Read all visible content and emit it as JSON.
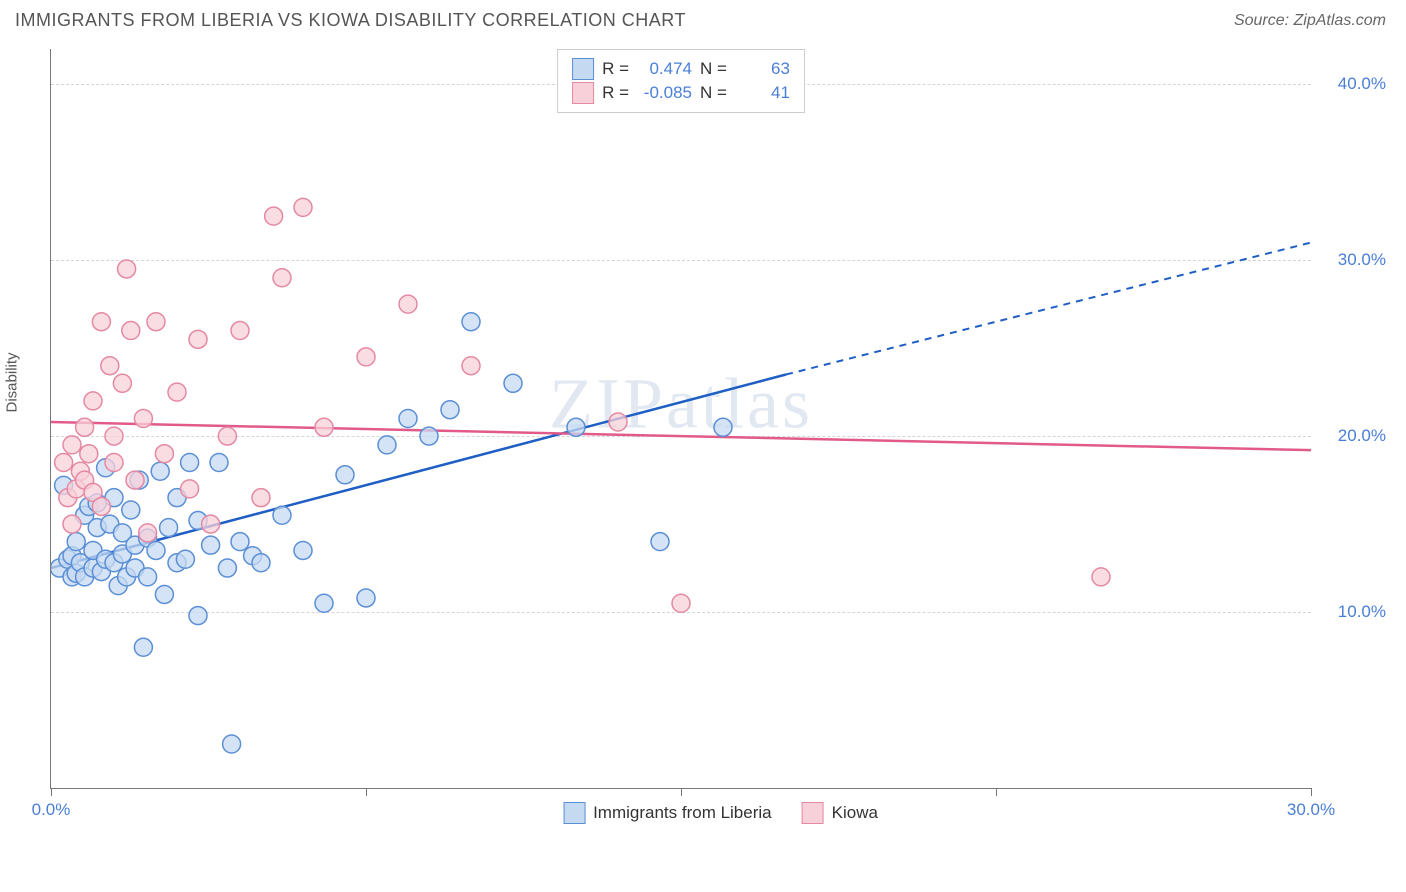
{
  "title": "IMMIGRANTS FROM LIBERIA VS KIOWA DISABILITY CORRELATION CHART",
  "source": "Source: ZipAtlas.com",
  "watermark": "ZIPatlas",
  "y_axis_label": "Disability",
  "chart": {
    "type": "scatter",
    "xlim": [
      0,
      30
    ],
    "ylim": [
      0,
      42
    ],
    "background_color": "#ffffff",
    "grid_color": "#d5d5d5",
    "axis_color": "#777777",
    "tick_label_color": "#4a7fd8",
    "y_ticks": [
      {
        "pos": 10,
        "label": "10.0%"
      },
      {
        "pos": 20,
        "label": "20.0%"
      },
      {
        "pos": 30,
        "label": "30.0%"
      },
      {
        "pos": 40,
        "label": "40.0%"
      }
    ],
    "x_ticks": [
      0,
      7.5,
      15,
      22.5,
      30
    ],
    "x_tick_labels": {
      "0": "0.0%",
      "30": "30.0%"
    },
    "marker_radius": 9,
    "marker_stroke_width": 1.5,
    "line_width": 2.5,
    "series": [
      {
        "name": "Immigrants from Liberia",
        "fill": "#c5d9f1",
        "stroke": "#5b8fd6",
        "line_color": "#1f5fc4",
        "R": "0.474",
        "N": "63",
        "trend": {
          "x1": 0,
          "y1": 12.5,
          "x2_solid": 17.5,
          "y2_solid": 23.5,
          "x2": 30,
          "y2": 31
        },
        "points": [
          [
            0.2,
            12.5
          ],
          [
            0.3,
            17.2
          ],
          [
            0.4,
            13.0
          ],
          [
            0.5,
            12.0
          ],
          [
            0.5,
            13.2
          ],
          [
            0.6,
            14.0
          ],
          [
            0.6,
            12.2
          ],
          [
            0.7,
            12.8
          ],
          [
            0.8,
            15.5
          ],
          [
            0.8,
            12.0
          ],
          [
            0.9,
            16.0
          ],
          [
            1.0,
            12.5
          ],
          [
            1.0,
            13.5
          ],
          [
            1.1,
            14.8
          ],
          [
            1.1,
            16.2
          ],
          [
            1.2,
            12.3
          ],
          [
            1.3,
            18.2
          ],
          [
            1.3,
            13.0
          ],
          [
            1.4,
            15.0
          ],
          [
            1.5,
            12.8
          ],
          [
            1.5,
            16.5
          ],
          [
            1.6,
            11.5
          ],
          [
            1.7,
            14.5
          ],
          [
            1.7,
            13.3
          ],
          [
            1.8,
            12.0
          ],
          [
            1.9,
            15.8
          ],
          [
            2.0,
            13.8
          ],
          [
            2.0,
            12.5
          ],
          [
            2.1,
            17.5
          ],
          [
            2.2,
            8.0
          ],
          [
            2.3,
            14.2
          ],
          [
            2.3,
            12.0
          ],
          [
            2.5,
            13.5
          ],
          [
            2.6,
            18.0
          ],
          [
            2.7,
            11.0
          ],
          [
            2.8,
            14.8
          ],
          [
            3.0,
            16.5
          ],
          [
            3.0,
            12.8
          ],
          [
            3.2,
            13.0
          ],
          [
            3.3,
            18.5
          ],
          [
            3.5,
            15.2
          ],
          [
            3.5,
            9.8
          ],
          [
            3.8,
            13.8
          ],
          [
            4.0,
            18.5
          ],
          [
            4.2,
            12.5
          ],
          [
            4.3,
            2.5
          ],
          [
            4.5,
            14.0
          ],
          [
            4.8,
            13.2
          ],
          [
            5.0,
            12.8
          ],
          [
            5.5,
            15.5
          ],
          [
            6.0,
            13.5
          ],
          [
            6.5,
            10.5
          ],
          [
            7.0,
            17.8
          ],
          [
            7.5,
            10.8
          ],
          [
            8.0,
            19.5
          ],
          [
            8.5,
            21.0
          ],
          [
            9.0,
            20.0
          ],
          [
            9.5,
            21.5
          ],
          [
            10.0,
            26.5
          ],
          [
            11.0,
            23.0
          ],
          [
            12.5,
            20.5
          ],
          [
            14.5,
            14.0
          ],
          [
            16.0,
            20.5
          ]
        ]
      },
      {
        "name": "Kiowa",
        "fill": "#f8d0da",
        "stroke": "#e589a3",
        "line_color": "#e15a8a",
        "R": "-0.085",
        "N": "41",
        "trend": {
          "x1": 0,
          "y1": 20.8,
          "x2_solid": 30,
          "y2_solid": 19.2,
          "x2": 30,
          "y2": 19.2
        },
        "points": [
          [
            0.3,
            18.5
          ],
          [
            0.4,
            16.5
          ],
          [
            0.5,
            19.5
          ],
          [
            0.5,
            15.0
          ],
          [
            0.6,
            17.0
          ],
          [
            0.7,
            18.0
          ],
          [
            0.8,
            17.5
          ],
          [
            0.8,
            20.5
          ],
          [
            0.9,
            19.0
          ],
          [
            1.0,
            22.0
          ],
          [
            1.0,
            16.8
          ],
          [
            1.2,
            26.5
          ],
          [
            1.2,
            16.0
          ],
          [
            1.4,
            24.0
          ],
          [
            1.5,
            18.5
          ],
          [
            1.5,
            20.0
          ],
          [
            1.7,
            23.0
          ],
          [
            1.8,
            29.5
          ],
          [
            1.9,
            26.0
          ],
          [
            2.0,
            17.5
          ],
          [
            2.2,
            21.0
          ],
          [
            2.3,
            14.5
          ],
          [
            2.5,
            26.5
          ],
          [
            2.7,
            19.0
          ],
          [
            3.0,
            22.5
          ],
          [
            3.3,
            17.0
          ],
          [
            3.5,
            25.5
          ],
          [
            3.8,
            15.0
          ],
          [
            4.2,
            20.0
          ],
          [
            4.5,
            26.0
          ],
          [
            5.0,
            16.5
          ],
          [
            5.3,
            32.5
          ],
          [
            5.5,
            29.0
          ],
          [
            6.0,
            33.0
          ],
          [
            6.5,
            20.5
          ],
          [
            7.5,
            24.5
          ],
          [
            8.5,
            27.5
          ],
          [
            10.0,
            24.0
          ],
          [
            13.5,
            20.8
          ],
          [
            15.0,
            10.5
          ],
          [
            25.0,
            12.0
          ]
        ]
      }
    ]
  },
  "legend": {
    "R_label": "R =",
    "N_label": "N ="
  }
}
